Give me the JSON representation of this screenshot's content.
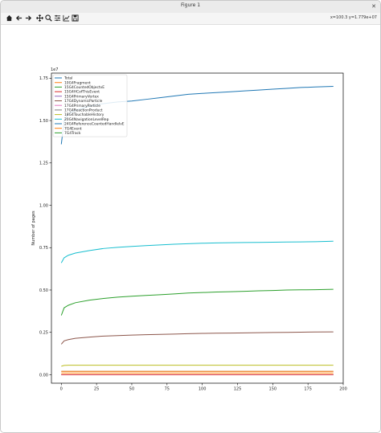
{
  "window": {
    "title": "Figure 1",
    "close_glyph": "✕"
  },
  "toolbar": {
    "buttons": [
      {
        "name": "home-icon",
        "label": "Home"
      },
      {
        "name": "back-icon",
        "label": "Back"
      },
      {
        "name": "forward-icon",
        "label": "Forward"
      },
      {
        "name": "pan-icon",
        "label": "Pan"
      },
      {
        "name": "zoom-icon",
        "label": "Zoom"
      },
      {
        "name": "configure-subplots-icon",
        "label": "Configure subplots"
      },
      {
        "name": "edit-axis-icon",
        "label": "Edit axis"
      },
      {
        "name": "save-icon",
        "label": "Save"
      }
    ],
    "coordinates": "x=100.3 y=1.779e+07"
  },
  "chart_data": {
    "type": "line",
    "title": "",
    "xlabel": "",
    "ylabel": "Number of pages",
    "y_offset_text": "1e7",
    "xlim": [
      -7,
      200
    ],
    "ylim": [
      -0.05,
      1.78
    ],
    "x_ticks": [
      0,
      25,
      50,
      75,
      100,
      125,
      150,
      175,
      200
    ],
    "x_tick_labels": [
      "0",
      "25",
      "50",
      "75",
      "100",
      "125",
      "150",
      "175",
      "200"
    ],
    "y_ticks": [
      0.0,
      0.25,
      0.5,
      0.75,
      1.0,
      1.25,
      1.5,
      1.75
    ],
    "y_tick_labels": [
      "0.00",
      "0.25",
      "0.50",
      "0.75",
      "1.00",
      "1.25",
      "1.50",
      "1.75"
    ],
    "legend_position": "upper-left",
    "grid": false,
    "x": [
      0,
      2,
      5,
      10,
      20,
      30,
      40,
      50,
      60,
      70,
      80,
      90,
      100,
      110,
      120,
      130,
      140,
      150,
      160,
      170,
      180,
      193
    ],
    "series": [
      {
        "name": "Total",
        "color": "#1f77b4",
        "values": [
          1.36,
          1.5,
          1.54,
          1.56,
          1.585,
          1.6,
          1.61,
          1.615,
          1.625,
          1.635,
          1.645,
          1.655,
          1.66,
          1.665,
          1.67,
          1.675,
          1.68,
          1.685,
          1.69,
          1.695,
          1.698,
          1.702
        ]
      },
      {
        "name": "10G4Fragment",
        "color": "#ff7f0e",
        "values": [
          0.02,
          0.02,
          0.02,
          0.02,
          0.02,
          0.02,
          0.02,
          0.02,
          0.02,
          0.02,
          0.02,
          0.02,
          0.02,
          0.02,
          0.02,
          0.02,
          0.02,
          0.02,
          0.02,
          0.02,
          0.02,
          0.02
        ]
      },
      {
        "name": "15G4CountedObjectvE",
        "color": "#2ca02c",
        "values": [
          0.35,
          0.395,
          0.41,
          0.425,
          0.44,
          0.45,
          0.458,
          0.463,
          0.468,
          0.472,
          0.477,
          0.482,
          0.485,
          0.488,
          0.49,
          0.492,
          0.495,
          0.497,
          0.5,
          0.501,
          0.502,
          0.504
        ]
      },
      {
        "name": "15G4HCofThisEvent",
        "color": "#d62728",
        "values": [
          0.0,
          0.0,
          0.0,
          0.0,
          0.0,
          0.0,
          0.0,
          0.0,
          0.0,
          0.0,
          0.0,
          0.0,
          0.0,
          0.0,
          0.0,
          0.0,
          0.0,
          0.0,
          0.0,
          0.0,
          0.0,
          0.0
        ]
      },
      {
        "name": "15G4PrimaryVertex",
        "color": "#9467bd",
        "values": [
          0.0,
          0.0,
          0.0,
          0.0,
          0.0,
          0.0,
          0.0,
          0.0,
          0.0,
          0.0,
          0.0,
          0.0,
          0.0,
          0.0,
          0.0,
          0.0,
          0.0,
          0.0,
          0.0,
          0.0,
          0.0,
          0.0
        ]
      },
      {
        "name": "17G4DynamicParticle",
        "color": "#8c564b",
        "values": [
          0.18,
          0.2,
          0.207,
          0.215,
          0.222,
          0.228,
          0.231,
          0.234,
          0.236,
          0.238,
          0.24,
          0.242,
          0.244,
          0.245,
          0.246,
          0.247,
          0.248,
          0.249,
          0.25,
          0.251,
          0.252,
          0.253
        ]
      },
      {
        "name": "17G4PrimaryParticle",
        "color": "#e377c2",
        "values": [
          0.0,
          0.0,
          0.0,
          0.0,
          0.0,
          0.0,
          0.0,
          0.0,
          0.0,
          0.0,
          0.0,
          0.0,
          0.0,
          0.0,
          0.0,
          0.0,
          0.0,
          0.0,
          0.0,
          0.0,
          0.0,
          0.0
        ]
      },
      {
        "name": "17G4ReactionProduct",
        "color": "#7f7f7f",
        "values": [
          0.02,
          0.02,
          0.02,
          0.02,
          0.02,
          0.02,
          0.02,
          0.02,
          0.02,
          0.02,
          0.02,
          0.02,
          0.02,
          0.02,
          0.02,
          0.02,
          0.02,
          0.02,
          0.02,
          0.02,
          0.02,
          0.02
        ]
      },
      {
        "name": "18G4TouchableHistory",
        "color": "#bcbd22",
        "values": [
          0.05,
          0.055,
          0.056,
          0.056,
          0.056,
          0.056,
          0.056,
          0.056,
          0.056,
          0.056,
          0.056,
          0.056,
          0.056,
          0.056,
          0.056,
          0.056,
          0.056,
          0.056,
          0.056,
          0.056,
          0.056,
          0.056
        ]
      },
      {
        "name": "20G4NavigationLevelRep",
        "color": "#17becf",
        "values": [
          0.66,
          0.69,
          0.705,
          0.718,
          0.733,
          0.745,
          0.752,
          0.757,
          0.762,
          0.766,
          0.77,
          0.773,
          0.776,
          0.778,
          0.779,
          0.78,
          0.781,
          0.782,
          0.783,
          0.784,
          0.785,
          0.788
        ]
      },
      {
        "name": "24G4ReferenceCountedHandleIvE",
        "color": "#1f77b4",
        "values": [
          0.0,
          0.0,
          0.0,
          0.0,
          0.0,
          0.0,
          0.0,
          0.0,
          0.0,
          0.0,
          0.0,
          0.0,
          0.0,
          0.0,
          0.0,
          0.0,
          0.0,
          0.0,
          0.0,
          0.0,
          0.0,
          0.0
        ]
      },
      {
        "name": "7G4Event",
        "color": "#ff7f0e",
        "values": [
          0.01,
          0.01,
          0.01,
          0.01,
          0.01,
          0.01,
          0.01,
          0.01,
          0.01,
          0.01,
          0.01,
          0.01,
          0.01,
          0.01,
          0.01,
          0.01,
          0.01,
          0.01,
          0.01,
          0.01,
          0.01,
          0.01
        ]
      },
      {
        "name": "7G4Track",
        "color": "#2ca02c",
        "values": [
          0.0,
          0.0,
          0.0,
          0.0,
          0.0,
          0.0,
          0.0,
          0.0,
          0.0,
          0.0,
          0.0,
          0.0,
          0.0,
          0.0,
          0.0,
          0.0,
          0.0,
          0.0,
          0.0,
          0.0,
          0.0,
          0.0
        ]
      }
    ]
  }
}
